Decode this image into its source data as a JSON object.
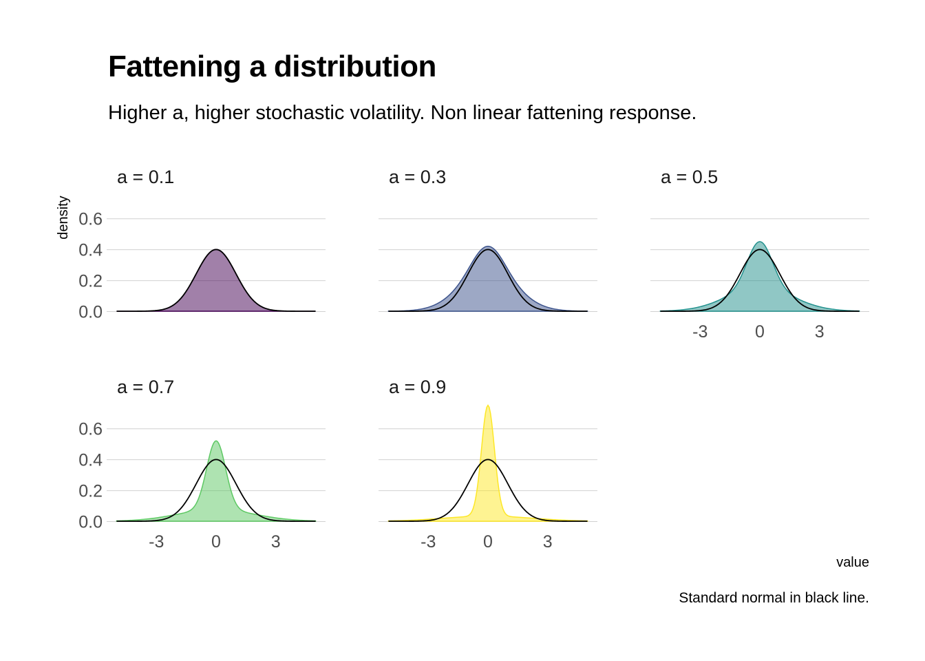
{
  "title": "Fattening a distribution",
  "subtitle": "Higher a, higher stochastic volatility. Non linear fattening response.",
  "caption": "Standard normal in black line.",
  "chart_data": {
    "type": "area",
    "chart_kind": "faceted density plot",
    "xlabel": "value",
    "ylabel": "density",
    "xlim": [
      -5,
      5
    ],
    "ylim": [
      0,
      0.65
    ],
    "x_ticks": [
      -3,
      0,
      3
    ],
    "x_tick_labels": [
      "-3",
      "0",
      "3"
    ],
    "y_ticks": [
      0,
      0.2,
      0.4,
      0.6
    ],
    "y_tick_labels": [
      "0.0",
      "0.2",
      "0.4",
      "0.6"
    ],
    "grid": "horizontal major gridlines",
    "reference": {
      "description": "standard normal density",
      "color": "#000000",
      "peak": 0.399
    },
    "facets": [
      {
        "label": "a = 0.1",
        "a": 0.1,
        "color": "#440154",
        "peak": 0.4
      },
      {
        "label": "a = 0.3",
        "a": 0.3,
        "color": "#3b528b",
        "peak": 0.42
      },
      {
        "label": "a = 0.5",
        "a": 0.5,
        "color": "#21908c",
        "peak": 0.45
      },
      {
        "label": "a = 0.7",
        "a": 0.7,
        "color": "#5dc863",
        "peak": 0.52
      },
      {
        "label": "a = 0.9",
        "a": 0.9,
        "color": "#fde725",
        "peak": 0.75
      }
    ]
  }
}
